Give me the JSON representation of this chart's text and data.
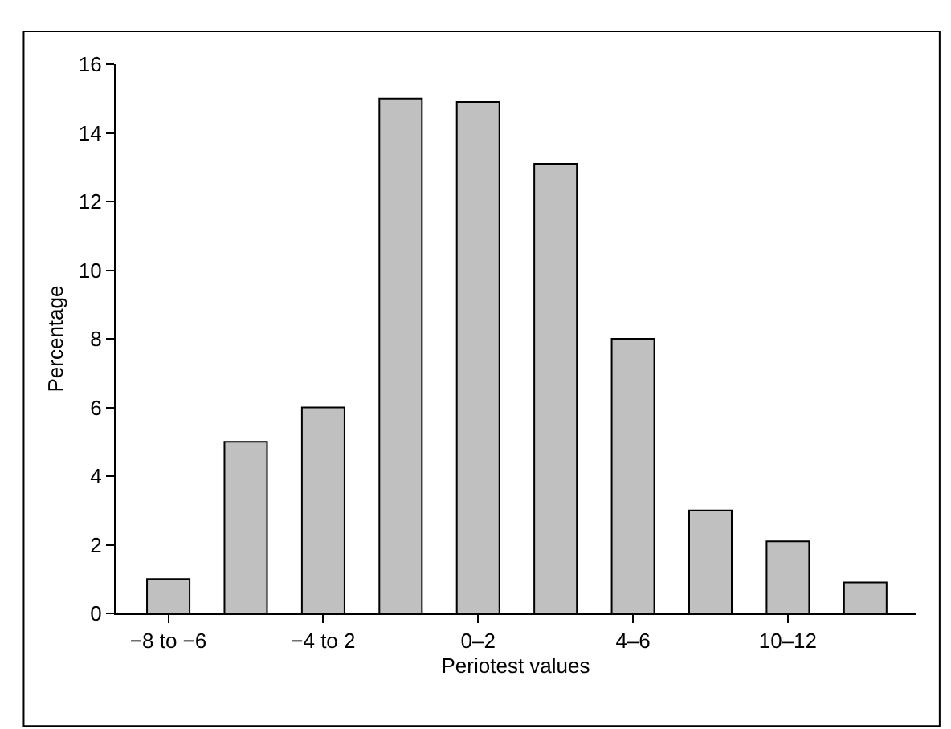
{
  "chart_data": {
    "type": "bar",
    "xlabel": "Periotest values",
    "ylabel": "Percentage",
    "categories": [
      "−8 to −6",
      null,
      "−4 to 2",
      null,
      "0–2",
      null,
      "4–6",
      null,
      "10–12",
      null
    ],
    "values": [
      1.0,
      5.0,
      6.0,
      15.0,
      14.9,
      13.1,
      8.0,
      3.0,
      2.1,
      0.9
    ],
    "color": "#c0c0c0",
    "ylim": [
      0,
      16
    ],
    "yticks": [
      0,
      2,
      4,
      6,
      8,
      10,
      12,
      14,
      16
    ],
    "legend": false
  }
}
